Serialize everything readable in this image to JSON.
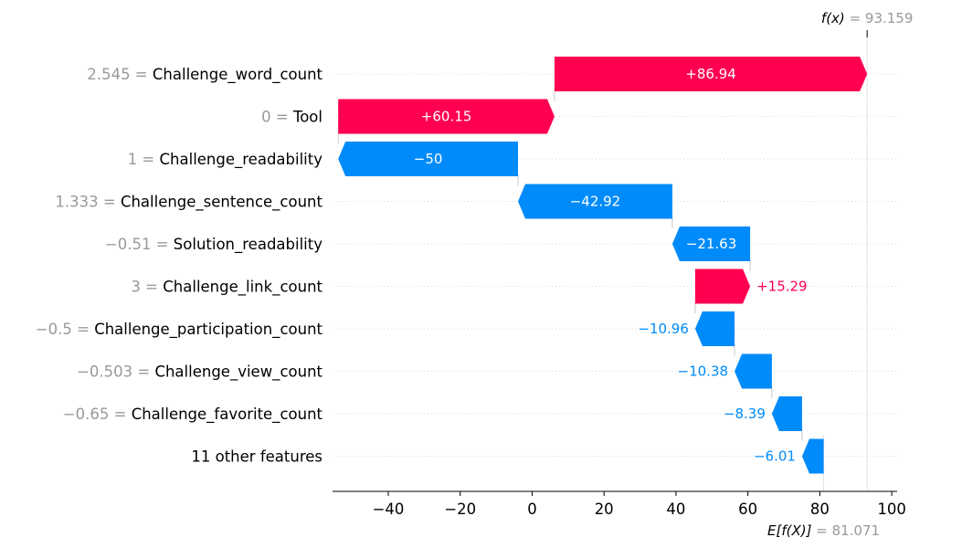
{
  "chart_data": {
    "type": "waterfall",
    "base_value": 81.071,
    "final_value": 93.159,
    "fx_label": {
      "name": "f(x)",
      "eq": " = ",
      "value": "93.159"
    },
    "efx_label": {
      "name": "E[f(X)]",
      "eq": " = ",
      "value": "81.071"
    },
    "xticks": [
      -40,
      -20,
      0,
      20,
      40,
      60,
      80,
      100
    ],
    "xtick_labels": [
      "−40",
      "−20",
      "0",
      "20",
      "40",
      "60",
      "80",
      "100"
    ],
    "xlim": [
      -55.5,
      101.5
    ],
    "features": [
      {
        "value": "2.545",
        "name": "Challenge_word_count",
        "contribution": 86.94,
        "label": "+86.94"
      },
      {
        "value": "0",
        "name": "Tool",
        "contribution": 60.15,
        "label": "+60.15"
      },
      {
        "value": "1",
        "name": "Challenge_readability",
        "contribution": -50,
        "label": "−50"
      },
      {
        "value": "1.333",
        "name": "Challenge_sentence_count",
        "contribution": -42.92,
        "label": "−42.92"
      },
      {
        "value": "−0.51",
        "name": "Solution_readability",
        "contribution": -21.63,
        "label": "−21.63"
      },
      {
        "value": "3",
        "name": "Challenge_link_count",
        "contribution": 15.29,
        "label": "+15.29"
      },
      {
        "value": "−0.5",
        "name": "Challenge_participation_count",
        "contribution": -10.96,
        "label": "−10.96"
      },
      {
        "value": "−0.503",
        "name": "Challenge_view_count",
        "contribution": -10.38,
        "label": "−10.38"
      },
      {
        "value": "−0.65",
        "name": "Challenge_favorite_count",
        "contribution": -8.39,
        "label": "−8.39"
      },
      {
        "value": "",
        "name": "11 other features",
        "contribution": -6.01,
        "label": "−6.01"
      }
    ],
    "colors": {
      "positive": "#ff0051",
      "negative": "#008bfb",
      "gray": "#999999",
      "text": "#000000"
    }
  }
}
